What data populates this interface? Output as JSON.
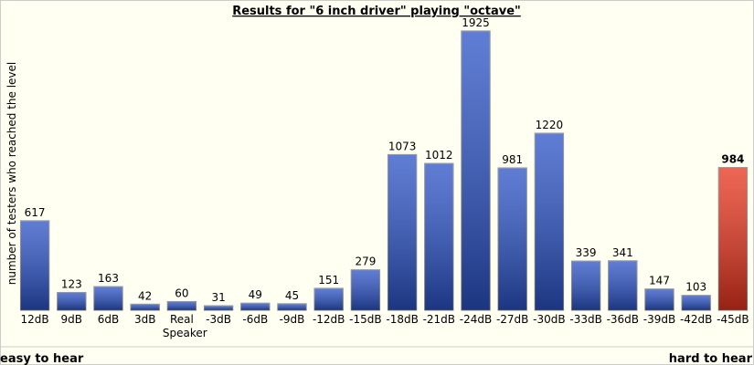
{
  "chart_data": {
    "type": "bar",
    "title": "Results for \"6 inch driver\" playing \"octave\"",
    "y_label": "number of testers who reached the level",
    "left_note": "easy to hear",
    "right_note": "hard to hear",
    "categories": [
      "12dB",
      "9dB",
      "6dB",
      "3dB",
      "Real Speaker",
      "-3dB",
      "-6dB",
      "-9dB",
      "-12dB",
      "-15dB",
      "-18dB",
      "-21dB",
      "-24dB",
      "-27dB",
      "-30dB",
      "-33dB",
      "-36dB",
      "-39dB",
      "-42dB",
      "-45dB"
    ],
    "values": [
      617,
      123,
      163,
      42,
      60,
      31,
      49,
      45,
      151,
      279,
      1073,
      1012,
      1925,
      981,
      1220,
      339,
      341,
      147,
      103,
      984
    ],
    "colors": [
      "#2a52c6",
      "#2a52c6",
      "#2a52c6",
      "#2a52c6",
      "#2a52c6",
      "#2a52c6",
      "#2a52c6",
      "#2a52c6",
      "#2a52c6",
      "#2a52c6",
      "#2a52c6",
      "#2a52c6",
      "#2a52c6",
      "#2a52c6",
      "#2a52c6",
      "#2a52c6",
      "#2a52c6",
      "#2a52c6",
      "#2a52c6",
      "#e8331c"
    ],
    "ylim": [
      0,
      2000
    ]
  }
}
